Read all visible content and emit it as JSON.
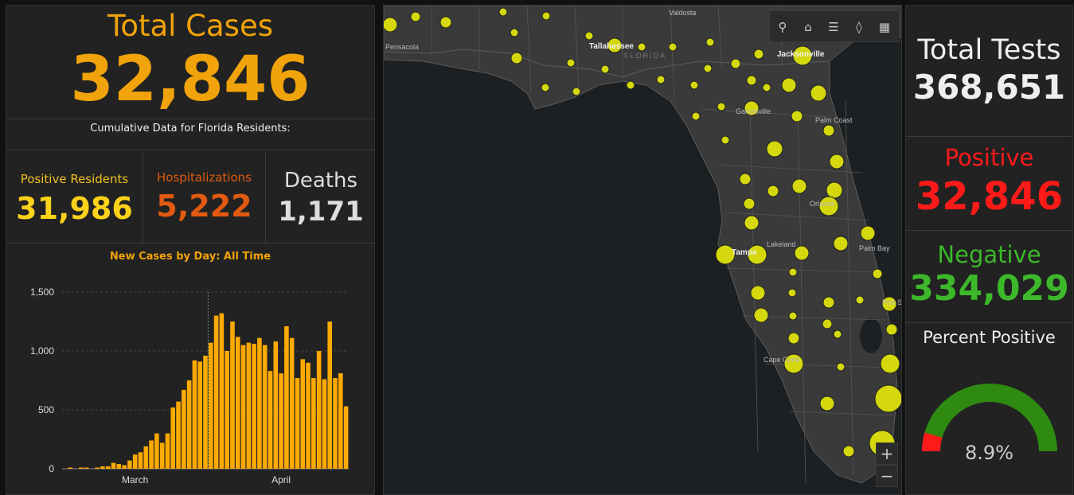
{
  "left": {
    "total_cases_label": "Total Cases",
    "total_cases_value": "32,846",
    "subtitle": "Cumulative Data for Florida Residents:",
    "positive_residents_label": "Positive Residents",
    "positive_residents_value": "31,986",
    "hospitalizations_label": "Hospitalizations",
    "hospitalizations_value": "5,222",
    "deaths_label": "Deaths",
    "deaths_value": "1,171"
  },
  "right": {
    "total_tests_label": "Total Tests",
    "total_tests_value": "368,651",
    "positive_label": "Positive",
    "positive_value": "32,846",
    "negative_label": "Negative",
    "negative_value": "334,029",
    "percent_label": "Percent Positive",
    "percent_value": "8.9%",
    "percent_fraction": 0.089
  },
  "map": {
    "cities": [
      "Valdosta",
      "Pensacola",
      "Tallahassee",
      "FLORIDA",
      "Jacksonville",
      "Gainesville",
      "Palm Coast",
      "Orlando",
      "Lakeland",
      "Tampa",
      "Palm Bay",
      "Port St. Lucie",
      "Cape Coral"
    ],
    "zoom_in": "+",
    "zoom_out": "−"
  },
  "colors": {
    "orange": "#f0a30a",
    "hosp": "#e25a10",
    "red": "#ff1a1a",
    "green": "#3cb82a",
    "bar": "#ffaa00",
    "county_dot": "#d4d80c"
  },
  "chart_data": {
    "type": "bar",
    "title": "New Cases by Day: All Time",
    "xlabel": "",
    "ylabel": "",
    "ylim": [
      0,
      1500
    ],
    "yticks": [
      "0",
      "500",
      "1,000",
      "1,500"
    ],
    "xtick_labels": [
      "March",
      "April"
    ],
    "values": [
      0,
      10,
      0,
      10,
      10,
      0,
      10,
      20,
      20,
      50,
      40,
      30,
      70,
      120,
      140,
      190,
      240,
      300,
      220,
      300,
      520,
      570,
      670,
      750,
      920,
      910,
      960,
      1070,
      1300,
      1320,
      1000,
      1250,
      1120,
      1050,
      1070,
      1060,
      1110,
      1050,
      830,
      1080,
      810,
      1210,
      1110,
      770,
      930,
      900,
      770,
      1000,
      760,
      1250,
      770,
      810,
      530
    ]
  }
}
